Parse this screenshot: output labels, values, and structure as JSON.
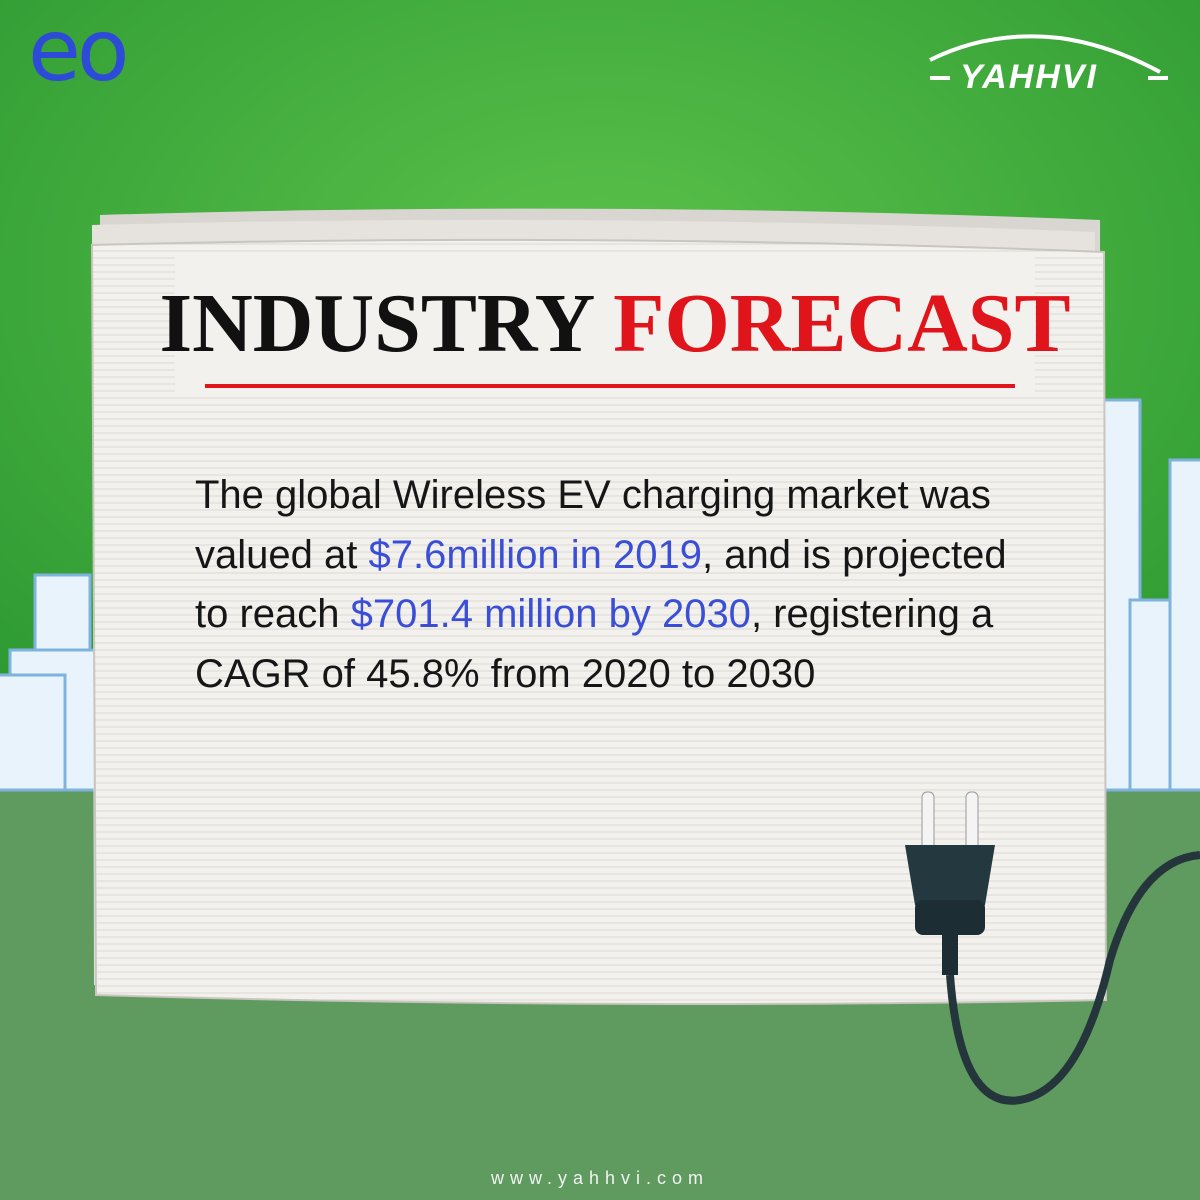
{
  "logo_left": "eo",
  "logo_right": "YAHHVI",
  "headline": {
    "word1": "INDUSTRY",
    "word2": "FORECAST"
  },
  "body": {
    "segments": [
      {
        "text": "The global Wireless EV charging market was valued at ",
        "highlight": false
      },
      {
        "text": "$7.6million in 2019",
        "highlight": true
      },
      {
        "text": ", and is projected to reach ",
        "highlight": false
      },
      {
        "text": "$701.4 million by 2030",
        "highlight": true
      },
      {
        "text": ", registering a CAGR of 45.8% from 2020 to 2030",
        "highlight": false
      }
    ]
  },
  "footer": "www.yahhvi.com"
}
